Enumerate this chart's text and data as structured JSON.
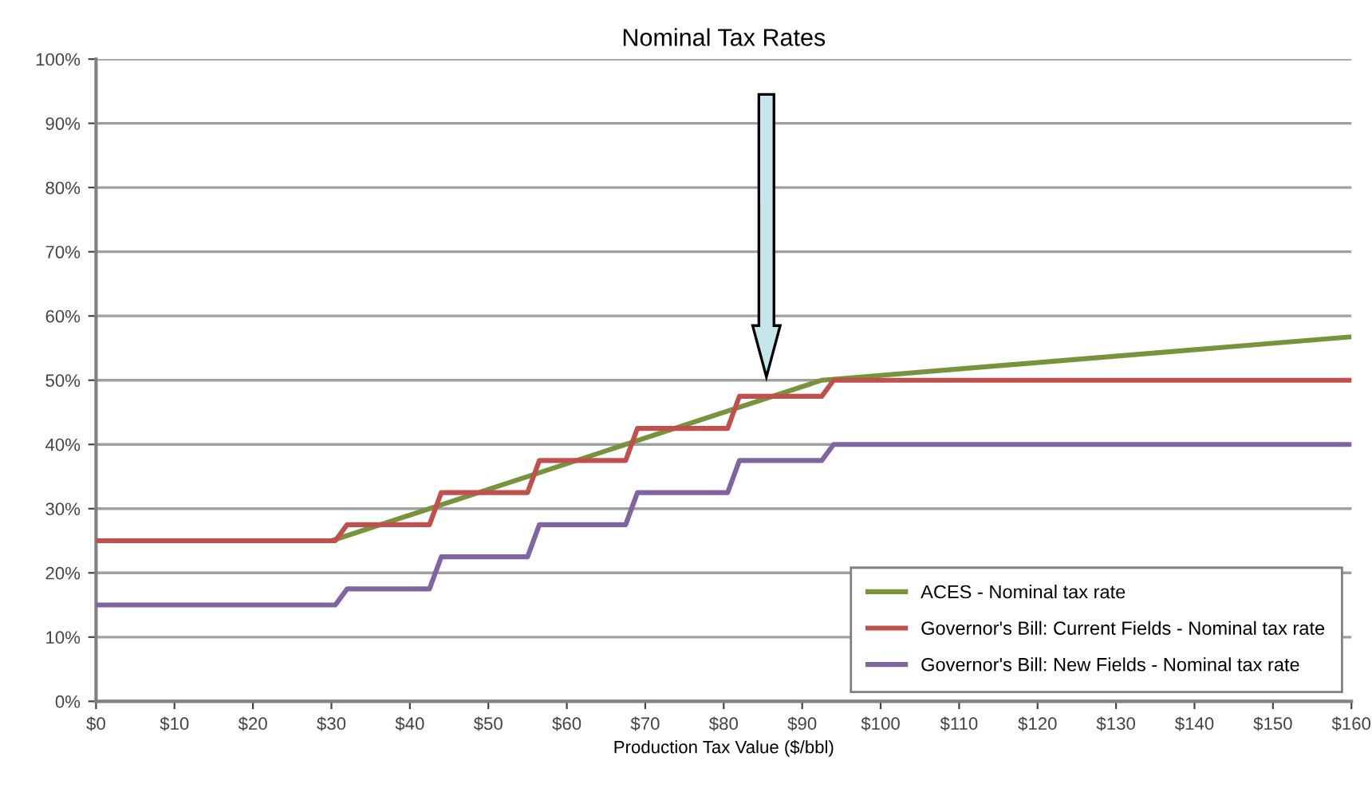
{
  "chart_data": {
    "type": "line",
    "title": "Nominal Tax Rates",
    "xlabel": "Production Tax Value ($/bbl)",
    "series": [
      {
        "name": "ACES - Nominal tax rate",
        "color": "#77933c",
        "x": [
          0,
          30,
          92.5,
          160
        ],
        "values": [
          25,
          25,
          50,
          56.75
        ]
      },
      {
        "name": "Governor's Bill: Current Fields - Nominal tax rate",
        "color": "#c0504d",
        "x": [
          0,
          30.5,
          32,
          42.5,
          44,
          55,
          56.5,
          67.5,
          69,
          80.5,
          82,
          92.5,
          94,
          160
        ],
        "values": [
          25,
          25,
          27.5,
          27.5,
          32.5,
          32.5,
          37.5,
          37.5,
          42.5,
          42.5,
          47.5,
          47.5,
          50,
          50
        ]
      },
      {
        "name": "Governor's Bill: New Fields - Nominal tax rate",
        "color": "#8064a2",
        "x": [
          0,
          30.5,
          32,
          42.5,
          44,
          55,
          56.5,
          67.5,
          69,
          80.5,
          82,
          92.5,
          94,
          160
        ],
        "values": [
          15,
          15,
          17.5,
          17.5,
          22.5,
          22.5,
          27.5,
          27.5,
          32.5,
          32.5,
          37.5,
          37.5,
          40,
          40
        ]
      }
    ],
    "xlim": [
      0,
      160
    ],
    "ylim": [
      0,
      100
    ],
    "xticks": [
      {
        "value": 0,
        "label": "$0"
      },
      {
        "value": 10,
        "label": "$10"
      },
      {
        "value": 20,
        "label": "$20"
      },
      {
        "value": 30,
        "label": "$30"
      },
      {
        "value": 40,
        "label": "$40"
      },
      {
        "value": 50,
        "label": "$50"
      },
      {
        "value": 60,
        "label": "$60"
      },
      {
        "value": 70,
        "label": "$70"
      },
      {
        "value": 80,
        "label": "$80"
      },
      {
        "value": 90,
        "label": "$90"
      },
      {
        "value": 100,
        "label": "$100"
      },
      {
        "value": 110,
        "label": "$110"
      },
      {
        "value": 120,
        "label": "$120"
      },
      {
        "value": 130,
        "label": "$130"
      },
      {
        "value": 140,
        "label": "$140"
      },
      {
        "value": 150,
        "label": "$150"
      },
      {
        "value": 160,
        "label": "$160"
      }
    ],
    "yticks": [
      {
        "value": 0,
        "label": "0%"
      },
      {
        "value": 10,
        "label": "10%"
      },
      {
        "value": 20,
        "label": "20%"
      },
      {
        "value": 30,
        "label": "30%"
      },
      {
        "value": 40,
        "label": "40%"
      },
      {
        "value": 50,
        "label": "50%"
      },
      {
        "value": 60,
        "label": "60%"
      },
      {
        "value": 70,
        "label": "70%"
      },
      {
        "value": 80,
        "label": "80%"
      },
      {
        "value": 90,
        "label": "90%"
      },
      {
        "value": 100,
        "label": "100%"
      }
    ],
    "grid": "y",
    "legend": "bottom right",
    "marker": "none",
    "line_style": "solid"
  }
}
